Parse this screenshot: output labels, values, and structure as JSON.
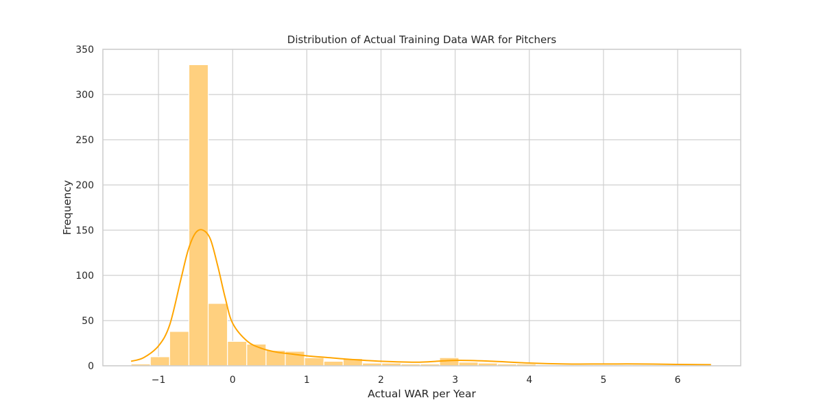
{
  "chart_data": {
    "type": "bar",
    "title": "Distribution of Actual Training Data WAR for Pitchers",
    "xlabel": "Actual WAR per Year",
    "ylabel": "Frequency",
    "xlim": [
      -1.75,
      6.85
    ],
    "ylim": [
      0,
      350
    ],
    "xticks": [
      -1,
      0,
      1,
      2,
      3,
      4,
      5,
      6
    ],
    "xtick_labels": [
      "−1",
      "0",
      "1",
      "2",
      "3",
      "4",
      "5",
      "6"
    ],
    "yticks": [
      0,
      50,
      100,
      150,
      200,
      250,
      300,
      350
    ],
    "ytick_labels": [
      "0",
      "50",
      "100",
      "150",
      "200",
      "250",
      "300",
      "350"
    ],
    "grid": true,
    "bar_color": "#ffd07f",
    "kde_color": "#ffa500",
    "bin_start": -1.37,
    "bin_width": 0.26,
    "values": [
      2,
      10,
      38,
      333,
      69,
      27,
      24,
      17,
      16,
      9,
      5,
      8,
      3,
      3,
      2,
      2,
      9,
      4,
      3,
      2,
      2,
      1,
      1,
      1,
      1,
      1,
      1,
      1,
      1,
      1
    ],
    "kde": {
      "x": [
        -1.37,
        -1.2,
        -1.0,
        -0.85,
        -0.7,
        -0.6,
        -0.5,
        -0.4,
        -0.3,
        -0.2,
        -0.1,
        0.0,
        0.2,
        0.4,
        0.6,
        0.8,
        1.0,
        1.3,
        1.6,
        2.0,
        2.5,
        3.0,
        3.5,
        4.0,
        4.5,
        5.0,
        5.5,
        6.0,
        6.45
      ],
      "y": [
        5,
        9,
        22,
        45,
        95,
        128,
        147,
        150,
        140,
        110,
        75,
        47,
        27,
        19,
        15,
        13,
        11,
        9,
        7,
        5,
        4,
        6,
        5,
        3,
        2,
        2,
        2,
        1.5,
        1.2
      ]
    }
  }
}
